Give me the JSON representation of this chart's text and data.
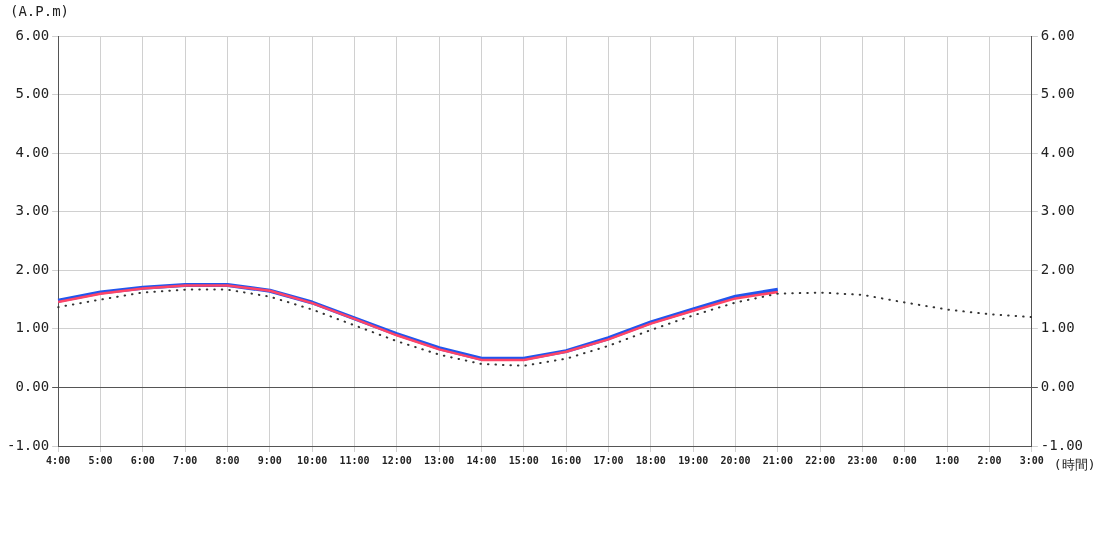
{
  "chart_data": {
    "type": "line",
    "ylabel": "(A.P.m)",
    "xlabel": "(時間)",
    "categories": [
      "4:00",
      "5:00",
      "6:00",
      "7:00",
      "8:00",
      "9:00",
      "10:00",
      "11:00",
      "12:00",
      "13:00",
      "14:00",
      "15:00",
      "16:00",
      "17:00",
      "18:00",
      "19:00",
      "20:00",
      "21:00",
      "22:00",
      "23:00",
      "0:00",
      "1:00",
      "2:00",
      "3:00"
    ],
    "series": [
      {
        "color": "#2255ee",
        "line_style": "solid",
        "values": [
          1.48,
          1.62,
          1.7,
          1.75,
          1.75,
          1.65,
          1.45,
          1.18,
          0.91,
          0.67,
          0.49,
          0.49,
          0.62,
          0.84,
          1.11,
          1.33,
          1.55,
          1.67,
          null,
          null,
          null,
          null,
          null,
          null
        ]
      },
      {
        "color": "#ff4466",
        "line_style": "solid",
        "values": [
          1.46,
          1.6,
          1.69,
          1.74,
          1.74,
          1.65,
          1.44,
          1.17,
          0.89,
          0.65,
          0.47,
          0.47,
          0.61,
          0.82,
          1.09,
          1.31,
          1.52,
          1.63,
          null,
          null,
          null,
          null,
          null,
          null
        ]
      },
      {
        "color": "#333333",
        "line_style": "dotted",
        "values": [
          1.37,
          1.5,
          1.62,
          1.67,
          1.67,
          1.55,
          1.33,
          1.06,
          0.79,
          0.56,
          0.4,
          0.37,
          0.49,
          0.71,
          0.98,
          1.23,
          1.45,
          1.6,
          1.62,
          1.58,
          1.45,
          1.33,
          1.25,
          1.2
        ]
      }
    ],
    "ylim": [
      -1,
      6
    ],
    "yticks": [
      {
        "value": -1,
        "label": "-1.00"
      },
      {
        "value": 0,
        "label": "0.00"
      },
      {
        "value": 1,
        "label": "1.00"
      },
      {
        "value": 2,
        "label": "2.00"
      },
      {
        "value": 3,
        "label": "3.00"
      },
      {
        "value": 4,
        "label": "4.00"
      },
      {
        "value": 5,
        "label": "5.00"
      },
      {
        "value": 6,
        "label": "6.00"
      }
    ],
    "y2lim": [
      -1,
      6
    ],
    "y2ticks": [
      {
        "value": -1,
        "label": "-1.00"
      },
      {
        "value": 0,
        "label": "0.00"
      },
      {
        "value": 1,
        "label": "1.00"
      },
      {
        "value": 2,
        "label": "2.00"
      },
      {
        "value": 3,
        "label": "3.00"
      },
      {
        "value": 4,
        "label": "4.00"
      },
      {
        "value": 5,
        "label": "5.00"
      },
      {
        "value": 6,
        "label": "6.00"
      }
    ],
    "grid": true,
    "legend": false,
    "marker": "none"
  }
}
